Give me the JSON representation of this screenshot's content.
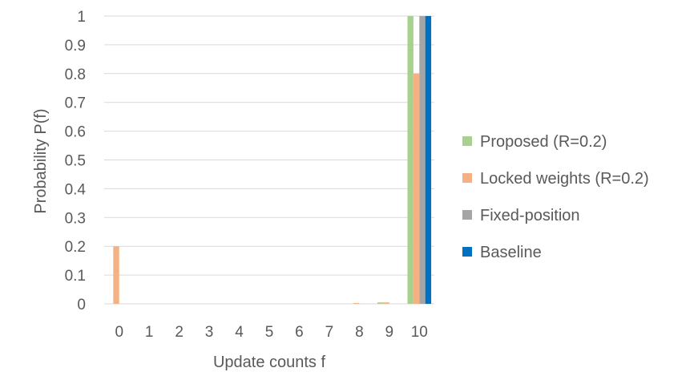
{
  "chart_data": {
    "type": "bar",
    "title": "",
    "xlabel": "Update counts f",
    "ylabel": "Probability P(f)",
    "categories": [
      "0",
      "1",
      "2",
      "3",
      "4",
      "5",
      "6",
      "7",
      "8",
      "9",
      "10"
    ],
    "ylim": [
      0,
      1
    ],
    "yticks": [
      "0",
      "0.1",
      "0.2",
      "0.3",
      "0.4",
      "0.5",
      "0.6",
      "0.7",
      "0.8",
      "0.9",
      "1"
    ],
    "grid": true,
    "legend_position": "right",
    "series": [
      {
        "name": "Proposed (R=0.2)",
        "color": "#a9d18e",
        "values": [
          0,
          0,
          0,
          0,
          0,
          0,
          0,
          0,
          0,
          0.005,
          1.0
        ]
      },
      {
        "name": "Locked weights (R=0.2)",
        "color": "#f4b183",
        "values": [
          0.2,
          0,
          0,
          0,
          0,
          0,
          0,
          0,
          0.002,
          0.005,
          0.8
        ]
      },
      {
        "name": "Fixed-position",
        "color": "#a5a5a5",
        "values": [
          0,
          0,
          0,
          0,
          0,
          0,
          0,
          0,
          0,
          0,
          1.0
        ]
      },
      {
        "name": "Baseline",
        "color": "#0070c0",
        "values": [
          0,
          0,
          0,
          0,
          0,
          0,
          0,
          0,
          0,
          0,
          1.0
        ]
      }
    ]
  }
}
